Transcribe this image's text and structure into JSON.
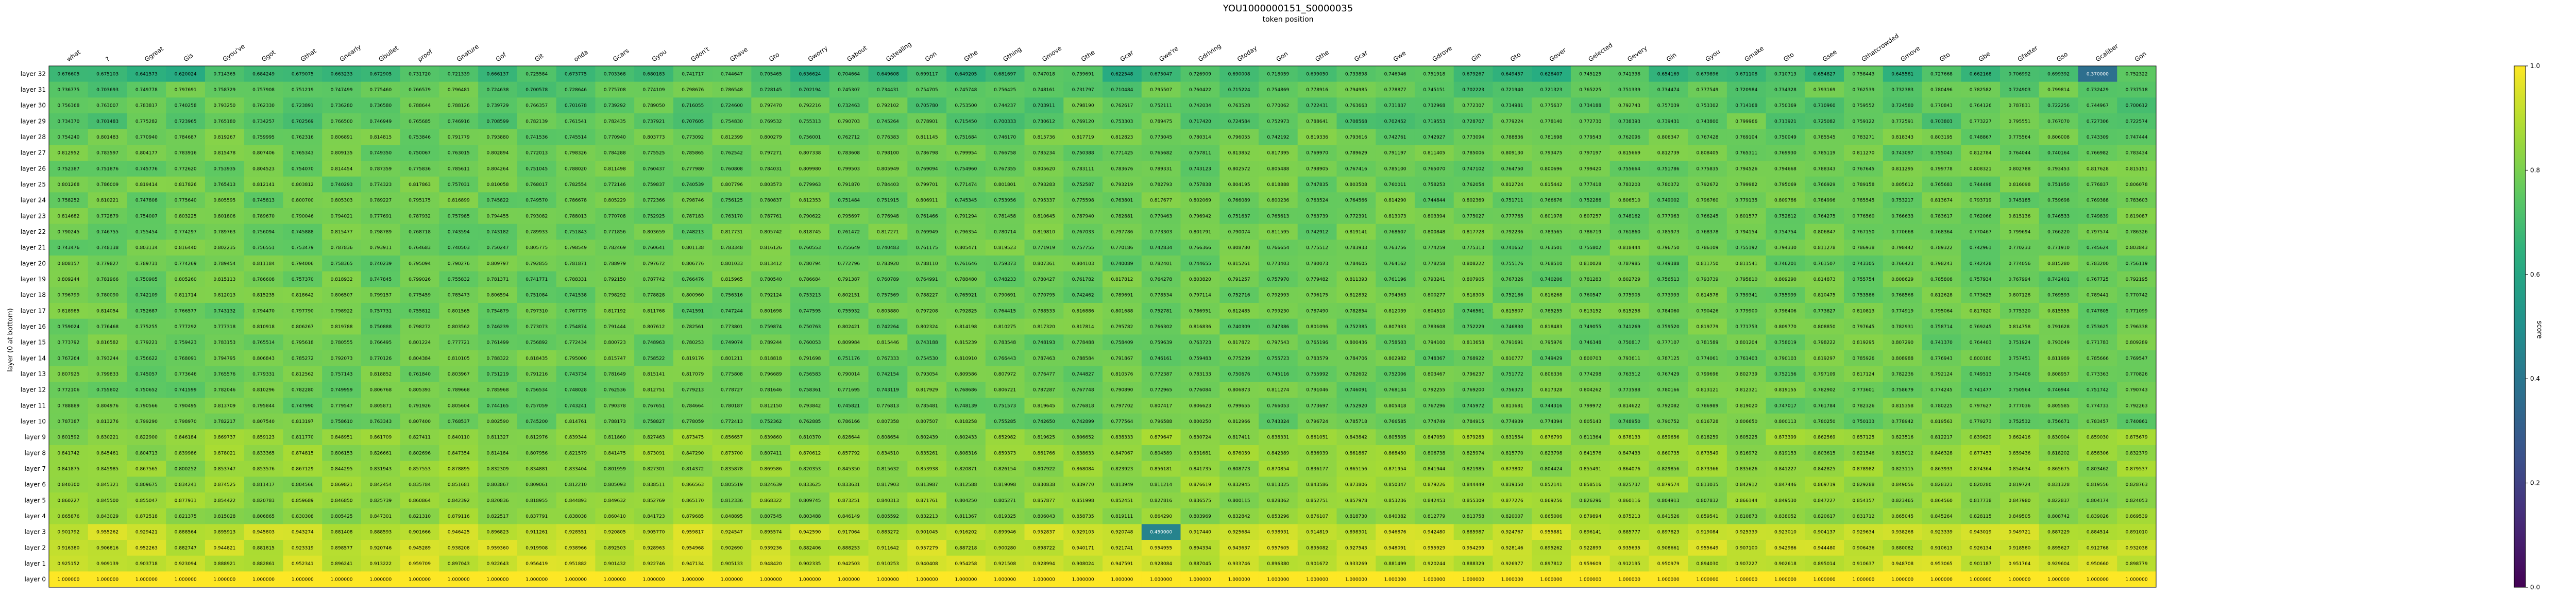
{
  "chart_data": {
    "type": "heatmap",
    "title": "YOU1000000151_S0000035",
    "subtitle": "token position",
    "ylabel": "layer (0 at bottom)",
    "colorbar_label": "score",
    "colorbar_ticks": [
      "0.0",
      "0.2",
      "0.4",
      "0.6",
      "0.8",
      "1.0"
    ],
    "value_range": [
      0,
      1
    ],
    "colormap": "viridis",
    "x_tokens": [
      "what",
      "?",
      "Ggreat",
      "Gis",
      "Gyou've",
      "Ggot",
      "Gthat",
      "Gnearly",
      "Gbullet",
      "proof",
      "Gnature",
      "Gof",
      "Git",
      "onda",
      "Gcars",
      "Gyou",
      "Gdon't",
      "Ghave",
      "Gto",
      "Gworry",
      "Gabout",
      "Gstealing",
      "Gon",
      "Gthe",
      "Gthing",
      "Gmove",
      "Gthe",
      "Gcar",
      "Gwe're",
      "Gdriving",
      "Gtoday",
      "Gon",
      "Gthe",
      "Gcar",
      "Gwe",
      "Gdrove",
      "Gin",
      "Gto",
      "Gover",
      "Gelected",
      "Gevery",
      "Gin",
      "Gyou",
      "Gmake",
      "Gto",
      "Gsee",
      "Gthatcrowded",
      "Gmove",
      "Gto",
      "Gbe",
      "Gfaster",
      "Gso",
      "Gcaliber",
      "Gon"
    ],
    "y_layers": [
      "layer 32",
      "layer 31",
      "layer 30",
      "layer 29",
      "layer 28",
      "layer 27",
      "layer 26",
      "layer 25",
      "layer 24",
      "layer 23",
      "layer 22",
      "layer 21",
      "layer 20",
      "layer 19",
      "layer 18",
      "layer 17",
      "layer 16",
      "layer 15",
      "layer 14",
      "layer 13",
      "layer 12",
      "layer 11",
      "layer 10",
      "layer 9",
      "layer 8",
      "layer 7",
      "layer 6",
      "layer 5",
      "layer 4",
      "layer 3",
      "layer 2",
      "layer 1",
      "layer 0"
    ],
    "highlights": [
      {
        "layer": 32,
        "token_index": 52,
        "value": 0.37
      },
      {
        "layer": 3,
        "token_index": 28,
        "value": 0.45
      }
    ]
  }
}
